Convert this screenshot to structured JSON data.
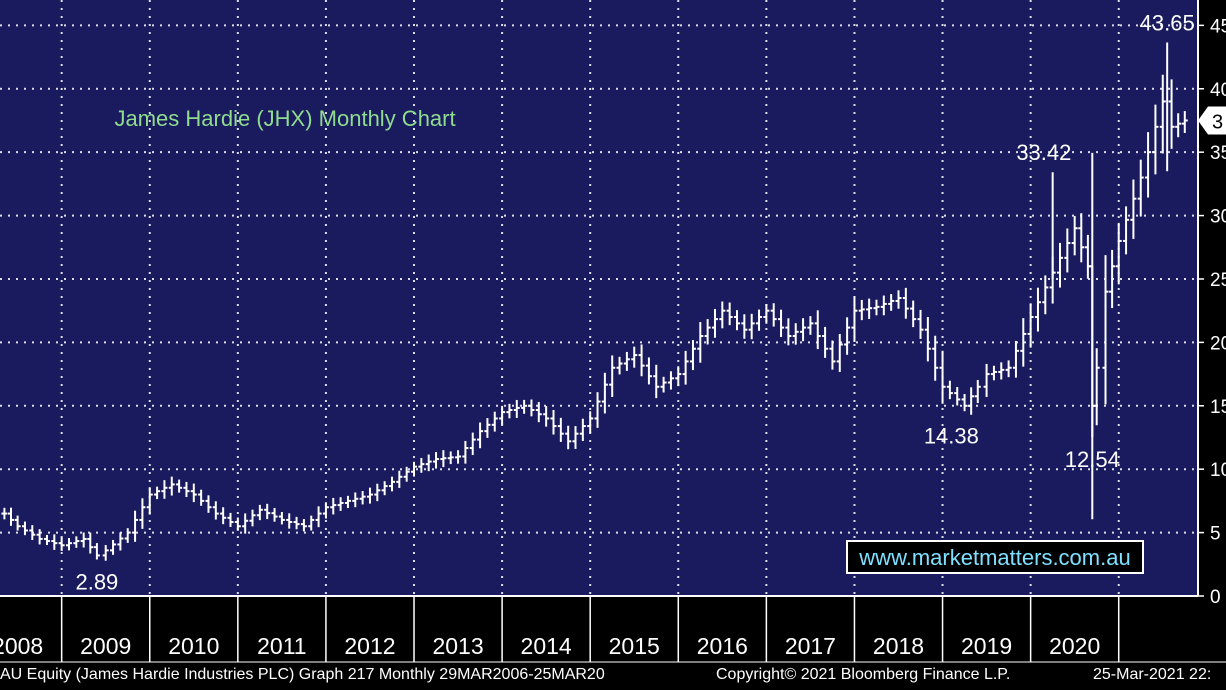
{
  "footer": {
    "security": "AU Equity (James Hardie Industries PLC) Graph 217  Monthly 29MAR2006-25MAR20",
    "copyright": "Copyright© 2021 Bloomberg Finance L.P.",
    "timestamp": "25-Mar-2021 22:"
  },
  "colors": {
    "plot_background": "#1a1a5e",
    "frame_background": "#000000",
    "grid": "#ffffff",
    "price_bars": "#ffffff",
    "title_text": "#8fdc8f",
    "watermark_text": "#7fe0ff"
  },
  "chart_data": {
    "type": "ohlc-bar",
    "title": "James Hardie (JHX) Monthly Chart",
    "watermark": "www.marketmatters.com.au",
    "x_range": [
      2007.8,
      2021.4
    ],
    "ylim": [
      0,
      47
    ],
    "grid": true,
    "x_tick_labels": [
      "2008",
      "2009",
      "2010",
      "2011",
      "2012",
      "2013",
      "2014",
      "2015",
      "2016",
      "2017",
      "2018",
      "2019",
      "2020"
    ],
    "y_tick_labels": [
      "0",
      "5",
      "10",
      "15",
      "20",
      "25",
      "30",
      "35",
      "40",
      "45"
    ],
    "last_price_label": "3",
    "annotations": [
      {
        "text": "2.89",
        "x": 2008.9,
        "y": 2.89
      },
      {
        "text": "14.38",
        "x": 2018.6,
        "y": 14.38
      },
      {
        "text": "12.54",
        "x": 2020.2,
        "y": 12.54
      },
      {
        "text": "33.42",
        "x": 2019.65,
        "y": 33.42
      },
      {
        "text": "43.65",
        "x": 2021.05,
        "y": 43.65
      }
    ],
    "series": [
      {
        "x": [
          2007.85,
          2008.0,
          2008.25,
          2008.5,
          2008.75,
          2008.9,
          2009.0,
          2009.25,
          2009.5,
          2009.75,
          2010.0,
          2010.25,
          2010.5,
          2010.75,
          2011.0,
          2011.25,
          2011.5,
          2011.75,
          2012.0,
          2012.25,
          2012.5,
          2012.75,
          2013.0,
          2013.25,
          2013.5,
          2013.75,
          2014.0,
          2014.25,
          2014.5,
          2014.75,
          2015.0,
          2015.25,
          2015.5,
          2015.75,
          2016.0,
          2016.25,
          2016.5,
          2016.75,
          2017.0,
          2017.25,
          2017.5,
          2017.75,
          2018.0,
          2018.25,
          2018.5,
          2018.75,
          2018.9,
          2019.0,
          2019.25,
          2019.5,
          2019.75,
          2020.0,
          2020.15,
          2020.2,
          2020.25,
          2020.35,
          2020.5,
          2020.75,
          2021.0,
          2021.1,
          2021.25
        ],
        "y": [
          6.5,
          5.5,
          4.5,
          4.0,
          4.5,
          3.2,
          3.6,
          5.0,
          8.0,
          8.8,
          8.0,
          6.5,
          5.5,
          6.8,
          6.0,
          5.5,
          7.0,
          7.5,
          8.0,
          9.0,
          10.2,
          10.8,
          11.0,
          13.0,
          14.5,
          15.0,
          14.0,
          12.2,
          14.0,
          18.0,
          19.0,
          16.5,
          17.5,
          20.5,
          22.5,
          21.0,
          22.5,
          20.5,
          21.5,
          18.5,
          22.5,
          22.8,
          23.5,
          21.0,
          16.5,
          15.0,
          16.5,
          17.5,
          18.0,
          22.0,
          25.5,
          29.0,
          26.0,
          15.0,
          18.0,
          24.0,
          28.0,
          33.0,
          39.0,
          37.0,
          37.5
        ]
      }
    ]
  }
}
